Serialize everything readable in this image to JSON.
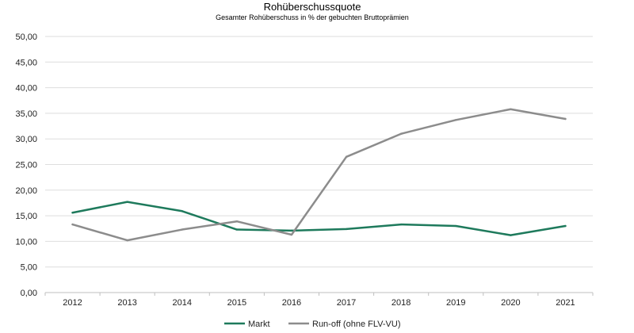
{
  "chart_data": {
    "type": "line",
    "title": "Rohüberschussquote",
    "subtitle": "Gesamter Rohüberschuss  in % der gebuchten Bruttoprämien",
    "categories": [
      "2012",
      "2013",
      "2014",
      "2015",
      "2016",
      "2017",
      "2018",
      "2019",
      "2020",
      "2021"
    ],
    "series": [
      {
        "name": "Markt",
        "color": "#1e7a5c",
        "values": [
          15.6,
          17.7,
          15.9,
          12.3,
          12.1,
          12.4,
          13.3,
          13.0,
          11.2,
          13.0
        ]
      },
      {
        "name": "Run-off (ohne FLV-VU)",
        "color": "#8c8c8c",
        "values": [
          13.3,
          10.2,
          12.3,
          13.9,
          11.3,
          26.5,
          31.0,
          33.7,
          35.8,
          33.9
        ]
      }
    ],
    "ylim": [
      0,
      50
    ],
    "yticks": [
      "0,00",
      "5,00",
      "10,00",
      "15,00",
      "20,00",
      "25,00",
      "30,00",
      "35,00",
      "40,00",
      "45,00",
      "50,00"
    ],
    "grid": true,
    "legend_position": "bottom"
  }
}
